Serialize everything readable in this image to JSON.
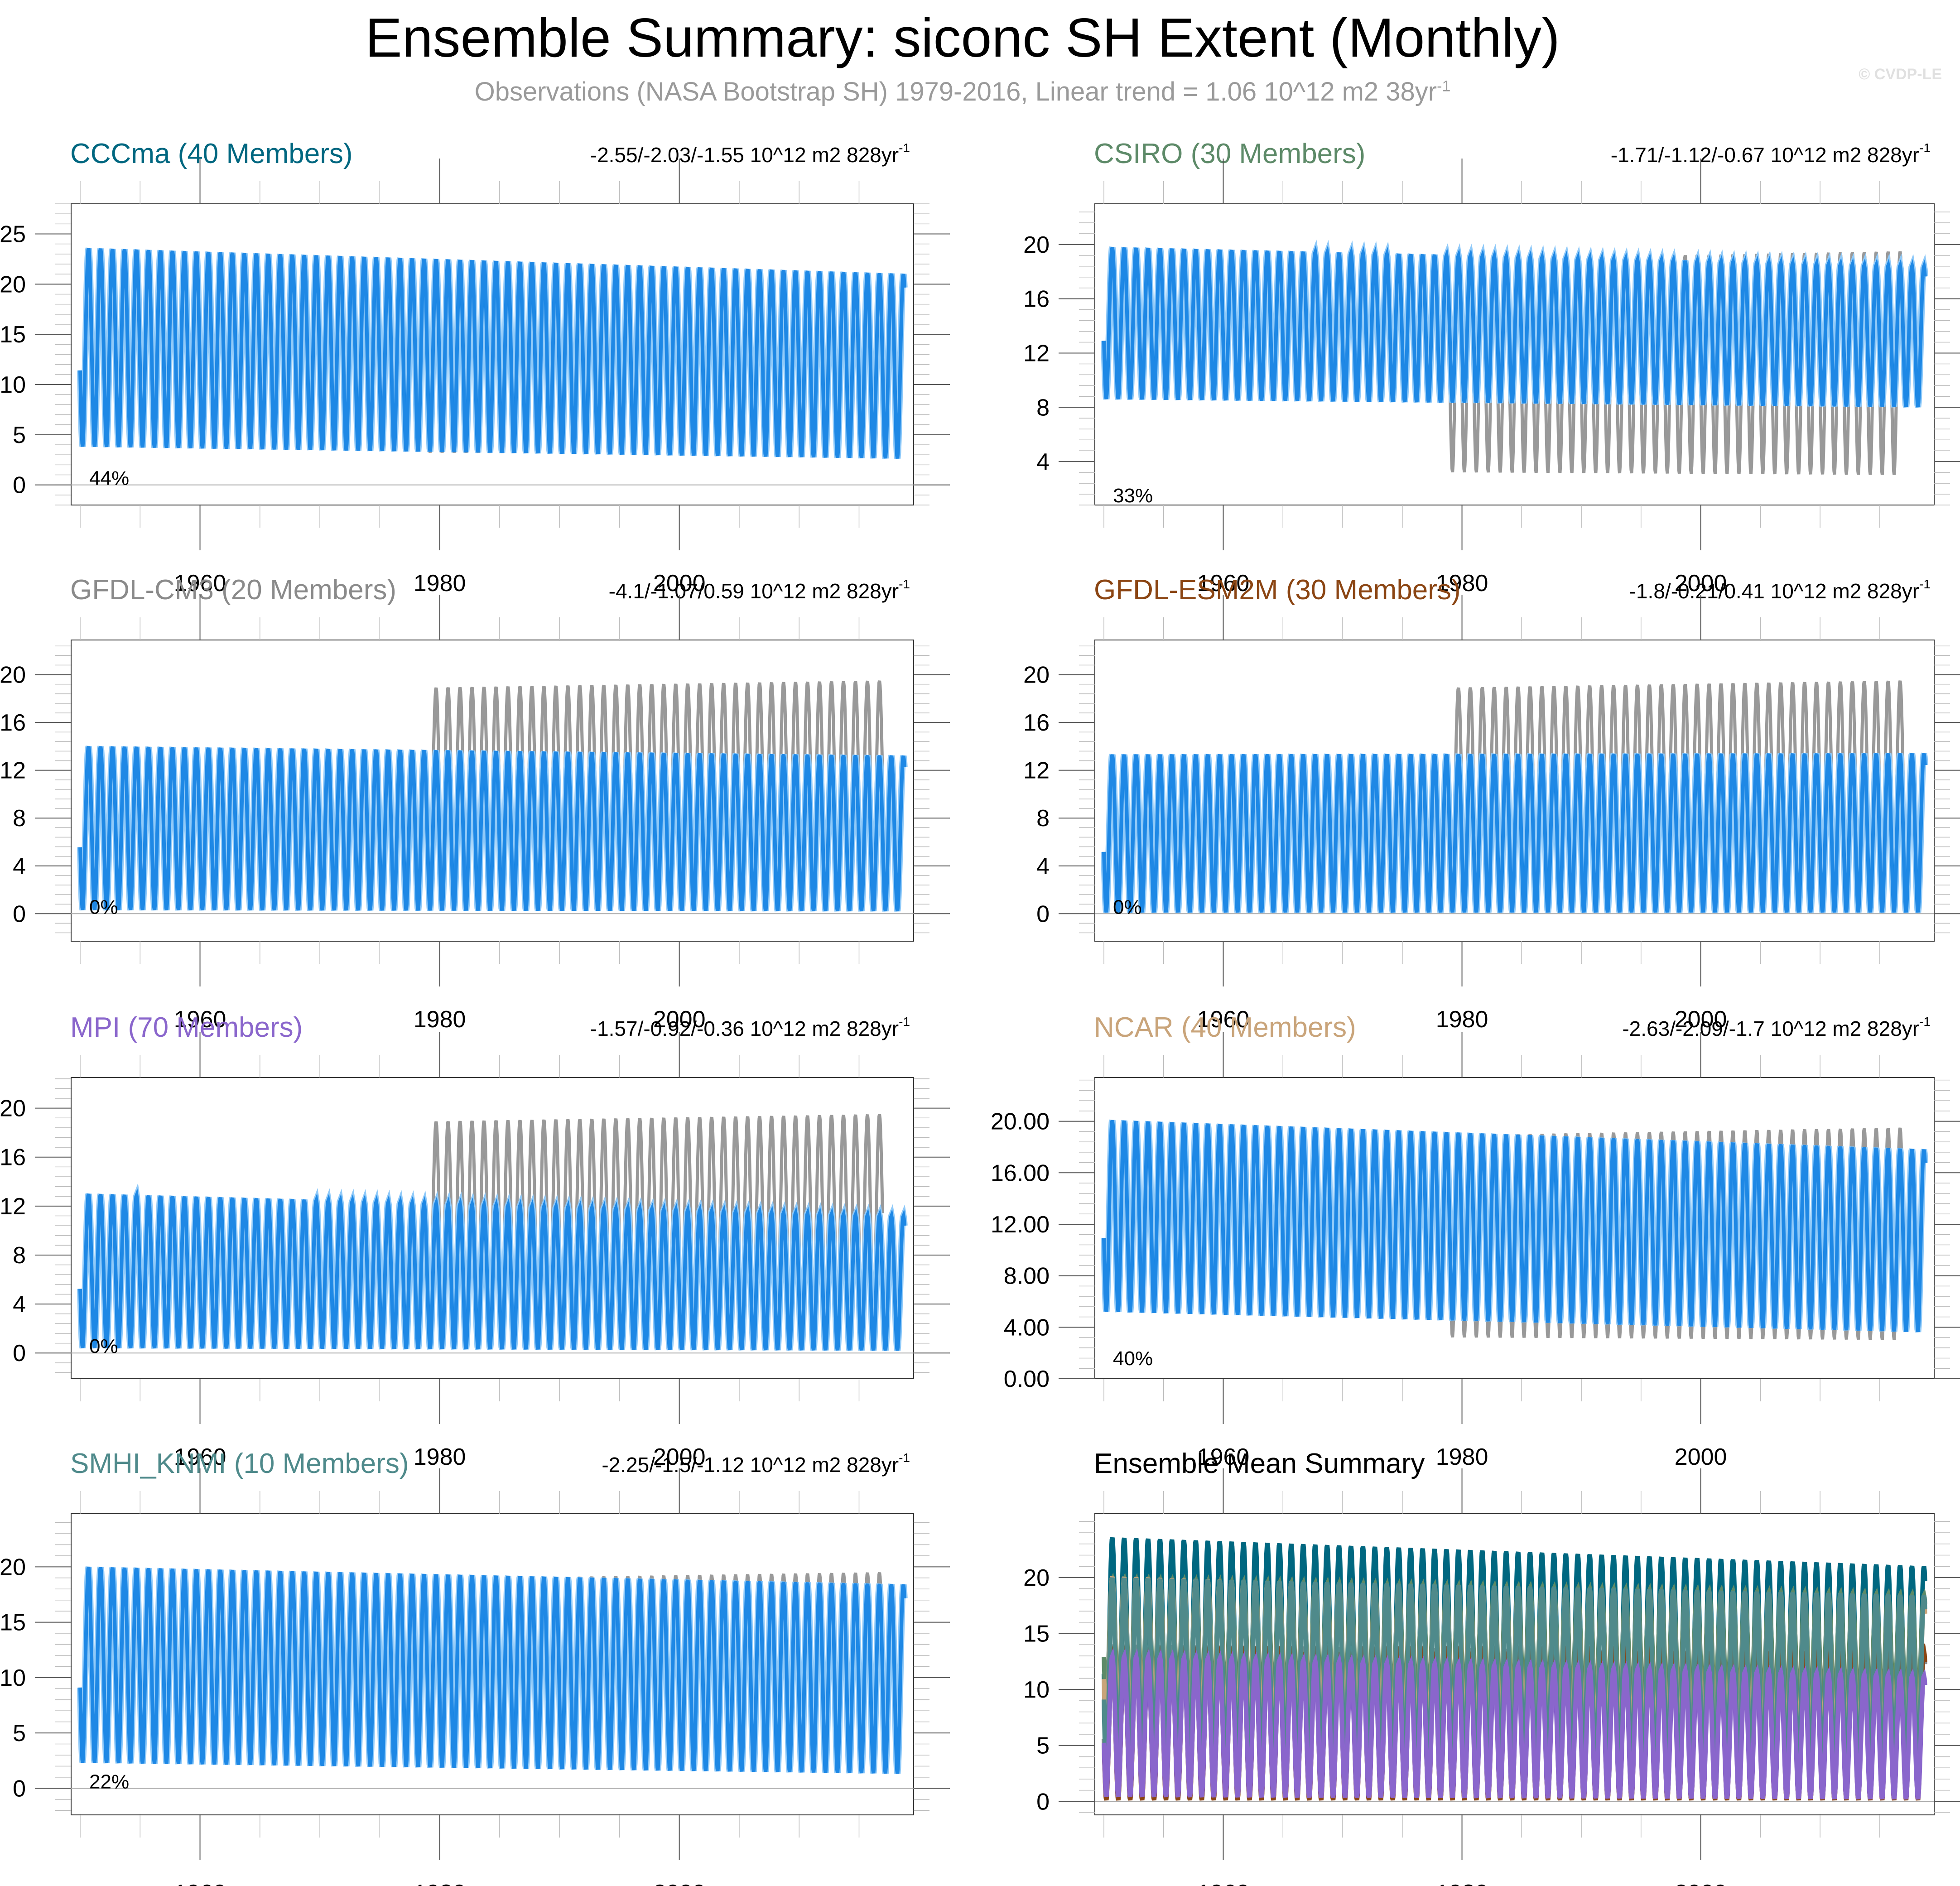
{
  "header": {
    "title": "Ensemble Summary: siconc SH Extent (Monthly)",
    "subtitle_main": "Observations (NASA Bootstrap SH) 1979-2016, Linear trend = 1.06 10^12 m2 38yr",
    "subtitle_sup": "-1",
    "copyright": "© CVDP-LE"
  },
  "colors": {
    "member_spread": "#90caf9",
    "ensemble_mean": "#1e88e5",
    "observations": "#999999",
    "axis": "#333333",
    "zero_line": "#aaaaaa"
  },
  "chart_data": [
    {
      "type": "line",
      "title": "CCCma (40 Members)",
      "title_color": "#006780",
      "trend_text": "-2.55/-2.03/-1.55 10^12 m2 828yr",
      "trend_sup": "-1",
      "percent_label": "44%",
      "xlim": [
        1950,
        2020
      ],
      "xticks": [
        1960,
        1980,
        2000
      ],
      "ylim": [
        -2,
        28
      ],
      "yticks": [
        0,
        5,
        10,
        15,
        20,
        25
      ],
      "ytick_labels": [
        "0",
        "5",
        "10",
        "15",
        "20",
        "25"
      ],
      "series": [
        {
          "name": "Ensemble mean",
          "start_max": 23.6,
          "end_max": 21.0,
          "start_min": 3.8,
          "end_min": 2.6
        },
        {
          "name": "Observations",
          "years": [
            1979,
            2016
          ],
          "start_max": 18.9,
          "end_max": 19.5,
          "start_min": 3.2,
          "end_min": 3.0
        }
      ]
    },
    {
      "type": "line",
      "title": "CSIRO (30 Members)",
      "title_color": "#5d8a68",
      "trend_text": "-1.71/-1.12/-0.67 10^12 m2 828yr",
      "trend_sup": "-1",
      "percent_label": "33%",
      "xlim": [
        1950,
        2020
      ],
      "xticks": [
        1960,
        1980,
        2000
      ],
      "ylim": [
        0.8,
        23
      ],
      "yticks": [
        4,
        8,
        12,
        16,
        20
      ],
      "ytick_labels": [
        "4",
        "8",
        "12",
        "16",
        "20"
      ],
      "series": [
        {
          "name": "Ensemble mean",
          "start_max": 19.8,
          "end_max": 18.4,
          "start_min": 8.6,
          "end_min": 8.0
        },
        {
          "name": "Observations",
          "years": [
            1979,
            2016
          ],
          "start_max": 18.9,
          "end_max": 19.5,
          "start_min": 3.2,
          "end_min": 3.0
        }
      ]
    },
    {
      "type": "line",
      "title": "GFDL-CM3 (20 Members)",
      "title_color": "#8a8a8a",
      "trend_text": "-4.1/-1.07/0.59 10^12 m2 828yr",
      "trend_sup": "-1",
      "percent_label": "0%",
      "xlim": [
        1950,
        2020
      ],
      "xticks": [
        1960,
        1980,
        2000
      ],
      "ylim": [
        -2.3,
        22.9
      ],
      "yticks": [
        0,
        4,
        8,
        12,
        16,
        20
      ],
      "ytick_labels": [
        "0",
        "4",
        "8",
        "12",
        "16",
        "20"
      ],
      "series": [
        {
          "name": "Ensemble mean",
          "start_max": 14.0,
          "end_max": 13.2,
          "start_min": 0.3,
          "end_min": 0.2
        },
        {
          "name": "Observations",
          "years": [
            1979,
            2016
          ],
          "start_max": 18.9,
          "end_max": 19.5,
          "start_min": 3.2,
          "end_min": 3.0
        }
      ]
    },
    {
      "type": "line",
      "title": "GFDL-ESM2M (30 Members)",
      "title_color": "#8b4513",
      "trend_text": "-1.8/-0.21/0.41 10^12 m2 828yr",
      "trend_sup": "-1",
      "percent_label": "0%",
      "xlim": [
        1950,
        2020
      ],
      "xticks": [
        1960,
        1980,
        2000
      ],
      "ylim": [
        -2.3,
        22.9
      ],
      "yticks": [
        0,
        4,
        8,
        12,
        16,
        20
      ],
      "ytick_labels": [
        "0",
        "4",
        "8",
        "12",
        "16",
        "20"
      ],
      "series": [
        {
          "name": "Ensemble mean",
          "start_max": 13.3,
          "end_max": 13.4,
          "start_min": 0.1,
          "end_min": 0.1
        },
        {
          "name": "Observations",
          "years": [
            1979,
            2016
          ],
          "start_max": 18.9,
          "end_max": 19.5,
          "start_min": 3.2,
          "end_min": 3.0
        }
      ]
    },
    {
      "type": "line",
      "title": "MPI (70 Members)",
      "title_color": "#8a66cc",
      "trend_text": "-1.57/-0.92/-0.36 10^12 m2 828yr",
      "trend_sup": "-1",
      "percent_label": "0%",
      "xlim": [
        1950,
        2020
      ],
      "xticks": [
        1960,
        1980,
        2000
      ],
      "ylim": [
        -2.1,
        22.5
      ],
      "yticks": [
        0,
        4,
        8,
        12,
        16,
        20
      ],
      "ytick_labels": [
        "0",
        "4",
        "8",
        "12",
        "16",
        "20"
      ],
      "series": [
        {
          "name": "Ensemble mean",
          "start_max": 13.0,
          "end_max": 11.2,
          "start_min": 0.4,
          "end_min": 0.2
        },
        {
          "name": "Observations",
          "years": [
            1979,
            2016
          ],
          "start_max": 18.9,
          "end_max": 19.5,
          "start_min": 3.2,
          "end_min": 3.0
        }
      ]
    },
    {
      "type": "line",
      "title": "NCAR (40 Members)",
      "title_color": "#c9a47a",
      "trend_text": "-2.63/-2.09/-1.7 10^12 m2 828yr",
      "trend_sup": "-1",
      "percent_label": "40%",
      "xlim": [
        1950,
        2020
      ],
      "xticks": [
        1960,
        1980,
        2000
      ],
      "ylim": [
        0,
        23.4
      ],
      "yticks": [
        0,
        4,
        8,
        12,
        16,
        20
      ],
      "ytick_labels": [
        "0.00",
        "4.00",
        "8.00",
        "12.00",
        "16.00",
        "20.00"
      ],
      "series": [
        {
          "name": "Ensemble mean",
          "start_max": 20.1,
          "end_max": 17.8,
          "start_min": 5.2,
          "end_min": 3.6
        },
        {
          "name": "Observations",
          "years": [
            1979,
            2016
          ],
          "start_max": 18.9,
          "end_max": 19.5,
          "start_min": 3.2,
          "end_min": 3.0
        }
      ]
    },
    {
      "type": "line",
      "title": "SMHI_KNMI (10 Members)",
      "title_color": "#4f8a8b",
      "trend_text": "-2.25/-1.5/-1.12 10^12 m2 828yr",
      "trend_sup": "-1",
      "percent_label": "22%",
      "xlim": [
        1950,
        2020
      ],
      "xticks": [
        1960,
        1980,
        2000
      ],
      "ylim": [
        -2.4,
        24.8
      ],
      "yticks": [
        0,
        5,
        10,
        15,
        20
      ],
      "ytick_labels": [
        "0",
        "5",
        "10",
        "15",
        "20"
      ],
      "series": [
        {
          "name": "Ensemble mean",
          "start_max": 20.0,
          "end_max": 18.4,
          "start_min": 2.3,
          "end_min": 1.3
        },
        {
          "name": "Observations",
          "years": [
            1979,
            2016
          ],
          "start_max": 18.9,
          "end_max": 19.5,
          "start_min": 3.2,
          "end_min": 3.0
        }
      ]
    },
    {
      "type": "line",
      "title": "Ensemble Mean Summary",
      "title_color": "#000000",
      "trend_text": "",
      "trend_sup": "",
      "percent_label": "",
      "xlim": [
        1950,
        2020
      ],
      "xticks": [
        1960,
        1980,
        2000
      ],
      "ylim": [
        -1.2,
        25.7
      ],
      "yticks": [
        0,
        5,
        10,
        15,
        20
      ],
      "ytick_labels": [
        "0",
        "5",
        "10",
        "15",
        "20"
      ],
      "series": [
        {
          "name": "CCCma",
          "color": "#006780",
          "start_max": 23.6,
          "end_max": 21.0,
          "start_min": 3.8,
          "end_min": 2.6
        },
        {
          "name": "CSIRO",
          "color": "#5d8a68",
          "start_max": 19.8,
          "end_max": 18.4,
          "start_min": 8.6,
          "end_min": 8.0
        },
        {
          "name": "GFDL-CM3",
          "color": "#8a8a8a",
          "start_max": 14.0,
          "end_max": 13.2,
          "start_min": 0.3,
          "end_min": 0.2
        },
        {
          "name": "GFDL-ESM2M",
          "color": "#8b4513",
          "start_max": 13.3,
          "end_max": 13.4,
          "start_min": 0.1,
          "end_min": 0.1
        },
        {
          "name": "NCAR",
          "color": "#c9a47a",
          "start_max": 20.1,
          "end_max": 17.8,
          "start_min": 5.2,
          "end_min": 3.6
        },
        {
          "name": "SMHI_KNMI",
          "color": "#4f8a8b",
          "start_max": 20.0,
          "end_max": 18.4,
          "start_min": 2.3,
          "end_min": 1.3
        },
        {
          "name": "MPI",
          "color": "#8a66cc",
          "start_max": 13.0,
          "end_max": 11.2,
          "start_min": 0.4,
          "end_min": 0.2
        }
      ]
    }
  ]
}
